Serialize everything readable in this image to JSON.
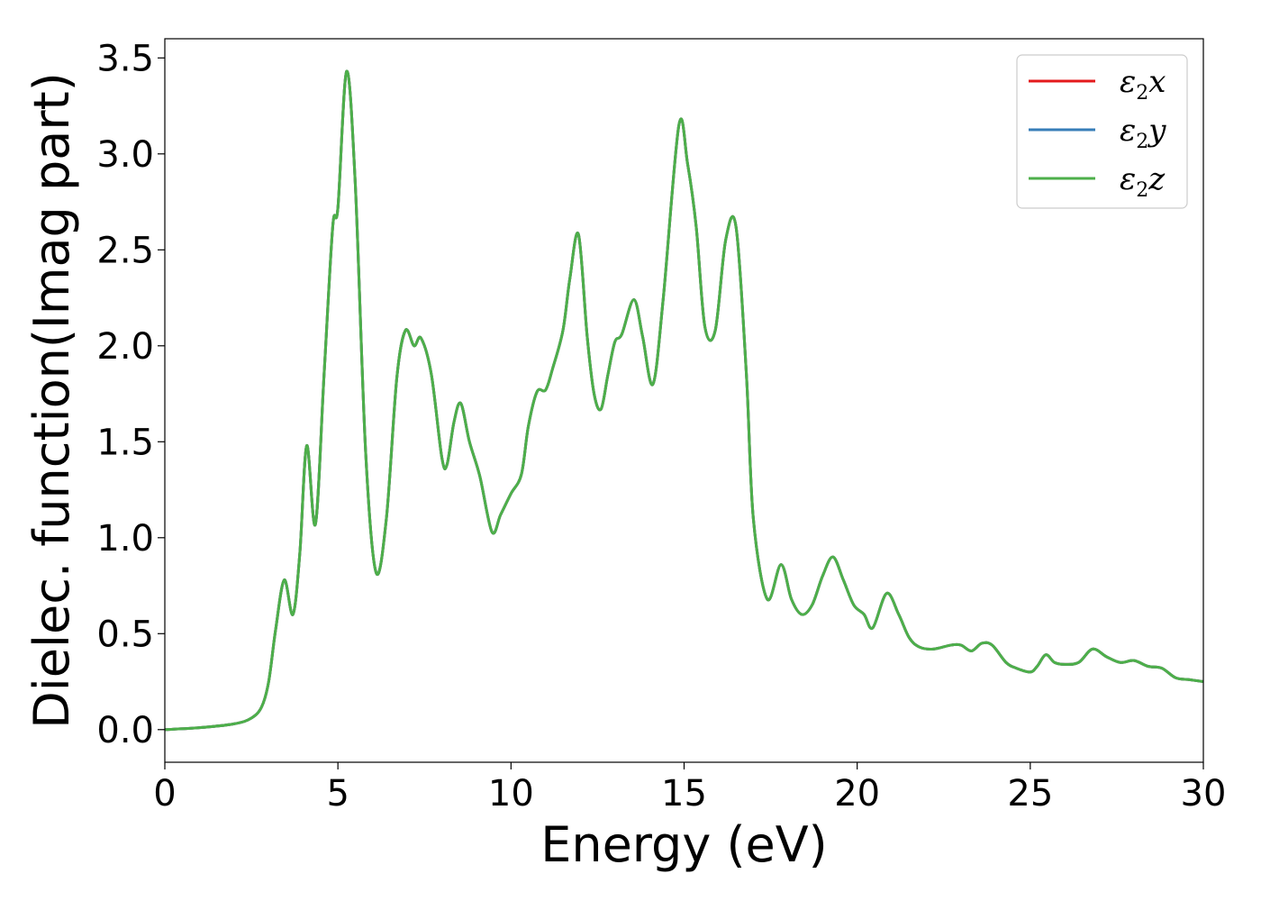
{
  "chart_data": {
    "type": "line",
    "title": "",
    "xlabel": "Energy (eV)",
    "ylabel": "Dielec. function(Imag part)",
    "xlim": [
      0,
      30
    ],
    "ylim": [
      -0.17,
      3.6
    ],
    "xticks": [
      0,
      5,
      10,
      15,
      20,
      25,
      30
    ],
    "xtick_labels": [
      "0",
      "5",
      "10",
      "15",
      "20",
      "25",
      "30"
    ],
    "yticks": [
      0.0,
      0.5,
      1.0,
      1.5,
      2.0,
      2.5,
      3.0,
      3.5
    ],
    "ytick_labels": [
      "0.0",
      "0.5",
      "1.0",
      "1.5",
      "2.0",
      "2.5",
      "3.0",
      "3.5"
    ],
    "grid": false,
    "legend_position": "top-right",
    "series": [
      {
        "name": "ε2x",
        "legend_base": "ε",
        "legend_sub": "2",
        "legend_suffix": "x",
        "color": "#e41a1c",
        "x": [
          0,
          1,
          2,
          2.5,
          2.8,
          3.0,
          3.2,
          3.45,
          3.7,
          3.9,
          4.1,
          4.35,
          4.6,
          4.85,
          5.0,
          5.25,
          5.5,
          5.8,
          6.1,
          6.4,
          6.7,
          6.95,
          7.2,
          7.4,
          7.7,
          8.0,
          8.15,
          8.35,
          8.55,
          8.8,
          9.1,
          9.45,
          9.7,
          10.0,
          10.3,
          10.5,
          10.75,
          11.0,
          11.2,
          11.5,
          11.7,
          11.95,
          12.2,
          12.4,
          12.6,
          12.8,
          13.0,
          13.2,
          13.55,
          13.8,
          14.1,
          14.4,
          14.85,
          15.1,
          15.35,
          15.6,
          15.9,
          16.2,
          16.5,
          16.8,
          17.0,
          17.4,
          17.8,
          18.1,
          18.4,
          18.7,
          19.0,
          19.3,
          19.6,
          19.9,
          20.2,
          20.45,
          20.85,
          21.2,
          21.5,
          21.8,
          22.2,
          22.7,
          23.0,
          23.3,
          23.6,
          23.9,
          24.3,
          24.6,
          25.0,
          25.2,
          25.45,
          25.7,
          26.0,
          26.4,
          26.8,
          27.2,
          27.6,
          28.0,
          28.4,
          28.8,
          29.2,
          29.6,
          30.0
        ],
        "y": [
          0.0,
          0.01,
          0.03,
          0.06,
          0.12,
          0.25,
          0.52,
          0.78,
          0.6,
          0.92,
          1.48,
          1.07,
          1.85,
          2.62,
          2.72,
          3.43,
          2.85,
          1.45,
          0.82,
          1.1,
          1.83,
          2.08,
          2.0,
          2.04,
          1.85,
          1.42,
          1.38,
          1.6,
          1.7,
          1.5,
          1.32,
          1.03,
          1.12,
          1.23,
          1.33,
          1.58,
          1.76,
          1.77,
          1.88,
          2.08,
          2.35,
          2.58,
          2.05,
          1.75,
          1.67,
          1.85,
          2.02,
          2.06,
          2.24,
          2.05,
          1.8,
          2.25,
          3.15,
          2.95,
          2.62,
          2.1,
          2.08,
          2.55,
          2.62,
          1.85,
          1.1,
          0.68,
          0.86,
          0.68,
          0.6,
          0.65,
          0.8,
          0.9,
          0.78,
          0.65,
          0.6,
          0.53,
          0.71,
          0.6,
          0.48,
          0.43,
          0.42,
          0.44,
          0.44,
          0.41,
          0.45,
          0.44,
          0.35,
          0.32,
          0.3,
          0.33,
          0.39,
          0.35,
          0.34,
          0.35,
          0.42,
          0.38,
          0.35,
          0.36,
          0.33,
          0.32,
          0.27,
          0.26,
          0.25
        ]
      },
      {
        "name": "ε2y",
        "legend_base": "ε",
        "legend_sub": "2",
        "legend_suffix": "y",
        "color": "#377eb8",
        "x": [
          0,
          1,
          2,
          2.5,
          2.8,
          3.0,
          3.2,
          3.45,
          3.7,
          3.9,
          4.1,
          4.35,
          4.6,
          4.85,
          5.0,
          5.25,
          5.5,
          5.8,
          6.1,
          6.4,
          6.7,
          6.95,
          7.2,
          7.4,
          7.7,
          8.0,
          8.15,
          8.35,
          8.55,
          8.8,
          9.1,
          9.45,
          9.7,
          10.0,
          10.3,
          10.5,
          10.75,
          11.0,
          11.2,
          11.5,
          11.7,
          11.95,
          12.2,
          12.4,
          12.6,
          12.8,
          13.0,
          13.2,
          13.55,
          13.8,
          14.1,
          14.4,
          14.85,
          15.1,
          15.35,
          15.6,
          15.9,
          16.2,
          16.5,
          16.8,
          17.0,
          17.4,
          17.8,
          18.1,
          18.4,
          18.7,
          19.0,
          19.3,
          19.6,
          19.9,
          20.2,
          20.45,
          20.85,
          21.2,
          21.5,
          21.8,
          22.2,
          22.7,
          23.0,
          23.3,
          23.6,
          23.9,
          24.3,
          24.6,
          25.0,
          25.2,
          25.45,
          25.7,
          26.0,
          26.4,
          26.8,
          27.2,
          27.6,
          28.0,
          28.4,
          28.8,
          29.2,
          29.6,
          30.0
        ],
        "y": [
          0.0,
          0.01,
          0.03,
          0.06,
          0.12,
          0.25,
          0.52,
          0.78,
          0.6,
          0.92,
          1.48,
          1.07,
          1.85,
          2.62,
          2.72,
          3.43,
          2.85,
          1.45,
          0.82,
          1.1,
          1.83,
          2.08,
          2.0,
          2.04,
          1.85,
          1.42,
          1.38,
          1.6,
          1.7,
          1.5,
          1.32,
          1.03,
          1.12,
          1.23,
          1.33,
          1.58,
          1.76,
          1.77,
          1.88,
          2.08,
          2.35,
          2.58,
          2.05,
          1.75,
          1.67,
          1.85,
          2.02,
          2.06,
          2.24,
          2.05,
          1.8,
          2.25,
          3.15,
          2.95,
          2.62,
          2.1,
          2.08,
          2.55,
          2.62,
          1.85,
          1.1,
          0.68,
          0.86,
          0.68,
          0.6,
          0.65,
          0.8,
          0.9,
          0.78,
          0.65,
          0.6,
          0.53,
          0.71,
          0.6,
          0.48,
          0.43,
          0.42,
          0.44,
          0.44,
          0.41,
          0.45,
          0.44,
          0.35,
          0.32,
          0.3,
          0.33,
          0.39,
          0.35,
          0.34,
          0.35,
          0.42,
          0.38,
          0.35,
          0.36,
          0.33,
          0.32,
          0.27,
          0.26,
          0.25
        ]
      },
      {
        "name": "ε2z",
        "legend_base": "ε",
        "legend_sub": "2",
        "legend_suffix": "z",
        "color": "#4daf4a",
        "x": [
          0,
          1,
          2,
          2.5,
          2.8,
          3.0,
          3.2,
          3.45,
          3.7,
          3.9,
          4.1,
          4.35,
          4.6,
          4.85,
          5.0,
          5.25,
          5.5,
          5.8,
          6.1,
          6.4,
          6.7,
          6.95,
          7.2,
          7.4,
          7.7,
          8.0,
          8.15,
          8.35,
          8.55,
          8.8,
          9.1,
          9.45,
          9.7,
          10.0,
          10.3,
          10.5,
          10.75,
          11.0,
          11.2,
          11.5,
          11.7,
          11.95,
          12.2,
          12.4,
          12.6,
          12.8,
          13.0,
          13.2,
          13.55,
          13.8,
          14.1,
          14.4,
          14.85,
          15.1,
          15.35,
          15.6,
          15.9,
          16.2,
          16.5,
          16.8,
          17.0,
          17.4,
          17.8,
          18.1,
          18.4,
          18.7,
          19.0,
          19.3,
          19.6,
          19.9,
          20.2,
          20.45,
          20.85,
          21.2,
          21.5,
          21.8,
          22.2,
          22.7,
          23.0,
          23.3,
          23.6,
          23.9,
          24.3,
          24.6,
          25.0,
          25.2,
          25.45,
          25.7,
          26.0,
          26.4,
          26.8,
          27.2,
          27.6,
          28.0,
          28.4,
          28.8,
          29.2,
          29.6,
          30.0
        ],
        "y": [
          0.0,
          0.01,
          0.03,
          0.06,
          0.12,
          0.25,
          0.52,
          0.78,
          0.6,
          0.92,
          1.48,
          1.07,
          1.85,
          2.62,
          2.72,
          3.43,
          2.85,
          1.45,
          0.82,
          1.1,
          1.83,
          2.08,
          2.0,
          2.04,
          1.85,
          1.42,
          1.38,
          1.6,
          1.7,
          1.5,
          1.32,
          1.03,
          1.12,
          1.23,
          1.33,
          1.58,
          1.76,
          1.77,
          1.88,
          2.08,
          2.35,
          2.58,
          2.05,
          1.75,
          1.67,
          1.85,
          2.02,
          2.06,
          2.24,
          2.05,
          1.8,
          2.25,
          3.15,
          2.95,
          2.62,
          2.1,
          2.08,
          2.55,
          2.62,
          1.85,
          1.1,
          0.68,
          0.86,
          0.68,
          0.6,
          0.65,
          0.8,
          0.9,
          0.78,
          0.65,
          0.6,
          0.53,
          0.71,
          0.6,
          0.48,
          0.43,
          0.42,
          0.44,
          0.44,
          0.41,
          0.45,
          0.44,
          0.35,
          0.32,
          0.3,
          0.33,
          0.39,
          0.35,
          0.34,
          0.35,
          0.42,
          0.38,
          0.35,
          0.36,
          0.33,
          0.32,
          0.27,
          0.26,
          0.25
        ]
      }
    ]
  }
}
